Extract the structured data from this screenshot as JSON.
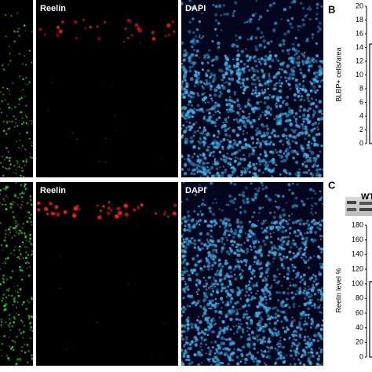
{
  "rows": [
    {
      "reelin": "Reelin",
      "dapi": "DAPI"
    },
    {
      "reelin": "Reelin",
      "dapi": "DAPI"
    }
  ],
  "chart_data": [
    {
      "type": "bar",
      "panel_label": "B",
      "ylabel": "BLBP+ cells/area",
      "categories": [
        null
      ],
      "values": [
        14.5
      ],
      "color": "#ffffff",
      "ylim": [
        0,
        20
      ],
      "yticks": [
        0,
        2,
        4,
        6,
        8,
        10,
        12,
        14,
        16,
        18,
        20
      ]
    },
    {
      "type": "bar",
      "panel_label": "C",
      "blot_label": "WT",
      "ylabel": "Reelin level %",
      "categories": [
        null
      ],
      "values": [
        103
      ],
      "color": "#ffffff",
      "ylim": [
        0,
        180
      ],
      "yticks": [
        0,
        20,
        40,
        60,
        80,
        100,
        120,
        140,
        160,
        180
      ]
    }
  ]
}
